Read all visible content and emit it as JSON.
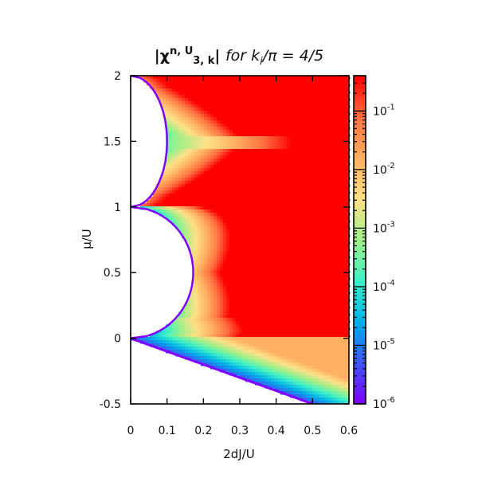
{
  "chart_data": {
    "type": "heatmap",
    "title": {
      "main": "|χ",
      "sup": "n, U",
      "sub": "3, k",
      "close": "| ",
      "suffix_italic": "for k",
      "suffix_sub": "i",
      "suffix_tail": "/π = 4/5"
    },
    "xlabel": "2dJ/U",
    "ylabel": "μ/U",
    "xlim": [
      0,
      0.6
    ],
    "ylim": [
      -0.5,
      2
    ],
    "x_ticks": [
      {
        "value": 0,
        "label": "0"
      },
      {
        "value": 0.1,
        "label": "0.1"
      },
      {
        "value": 0.2,
        "label": "0.2"
      },
      {
        "value": 0.3,
        "label": "0.3"
      },
      {
        "value": 0.4,
        "label": "0.4"
      },
      {
        "value": 0.5,
        "label": "0.5"
      },
      {
        "value": 0.6,
        "label": "0.6"
      }
    ],
    "y_ticks": [
      {
        "value": -0.5,
        "label": "-0.5"
      },
      {
        "value": 0,
        "label": "0"
      },
      {
        "value": 0.5,
        "label": "0.5"
      },
      {
        "value": 1,
        "label": "1"
      },
      {
        "value": 1.5,
        "label": "1.5"
      },
      {
        "value": 2,
        "label": "2"
      }
    ],
    "colorbar": {
      "scale": "log",
      "range": [
        1e-06,
        0.4
      ],
      "ticks": [
        {
          "value": 0.1,
          "base": "10",
          "exp": "-1"
        },
        {
          "value": 0.01,
          "base": "10",
          "exp": "-2"
        },
        {
          "value": 0.001,
          "base": "10",
          "exp": "-3"
        },
        {
          "value": 0.0001,
          "base": "10",
          "exp": "-4"
        },
        {
          "value": 1e-05,
          "base": "10",
          "exp": "-5"
        },
        {
          "value": 1e-06,
          "base": "10",
          "exp": "-6"
        }
      ],
      "colormap": [
        "#7f00ff",
        "#3f55f5",
        "#00b0e8",
        "#3cf0c8",
        "#a0f088",
        "#ffe088",
        "#ffb060",
        "#ff7040",
        "#ff0000"
      ]
    },
    "mott_lobes": [
      {
        "mu_min": 0,
        "mu_max": 1,
        "tip_mu": 0.5,
        "tip_2dJ": 0.172
      },
      {
        "mu_min": 1,
        "mu_max": 2,
        "tip_mu": 1.5,
        "tip_2dJ": 0.1
      }
    ],
    "lower_boundary": {
      "x": [
        0,
        0.5
      ],
      "y": [
        0,
        -0.5
      ]
    },
    "colors": {
      "axis": "#000000",
      "background": "#ffffff",
      "boundary": "#7f00ff",
      "edge_dots": "#b05050"
    }
  }
}
